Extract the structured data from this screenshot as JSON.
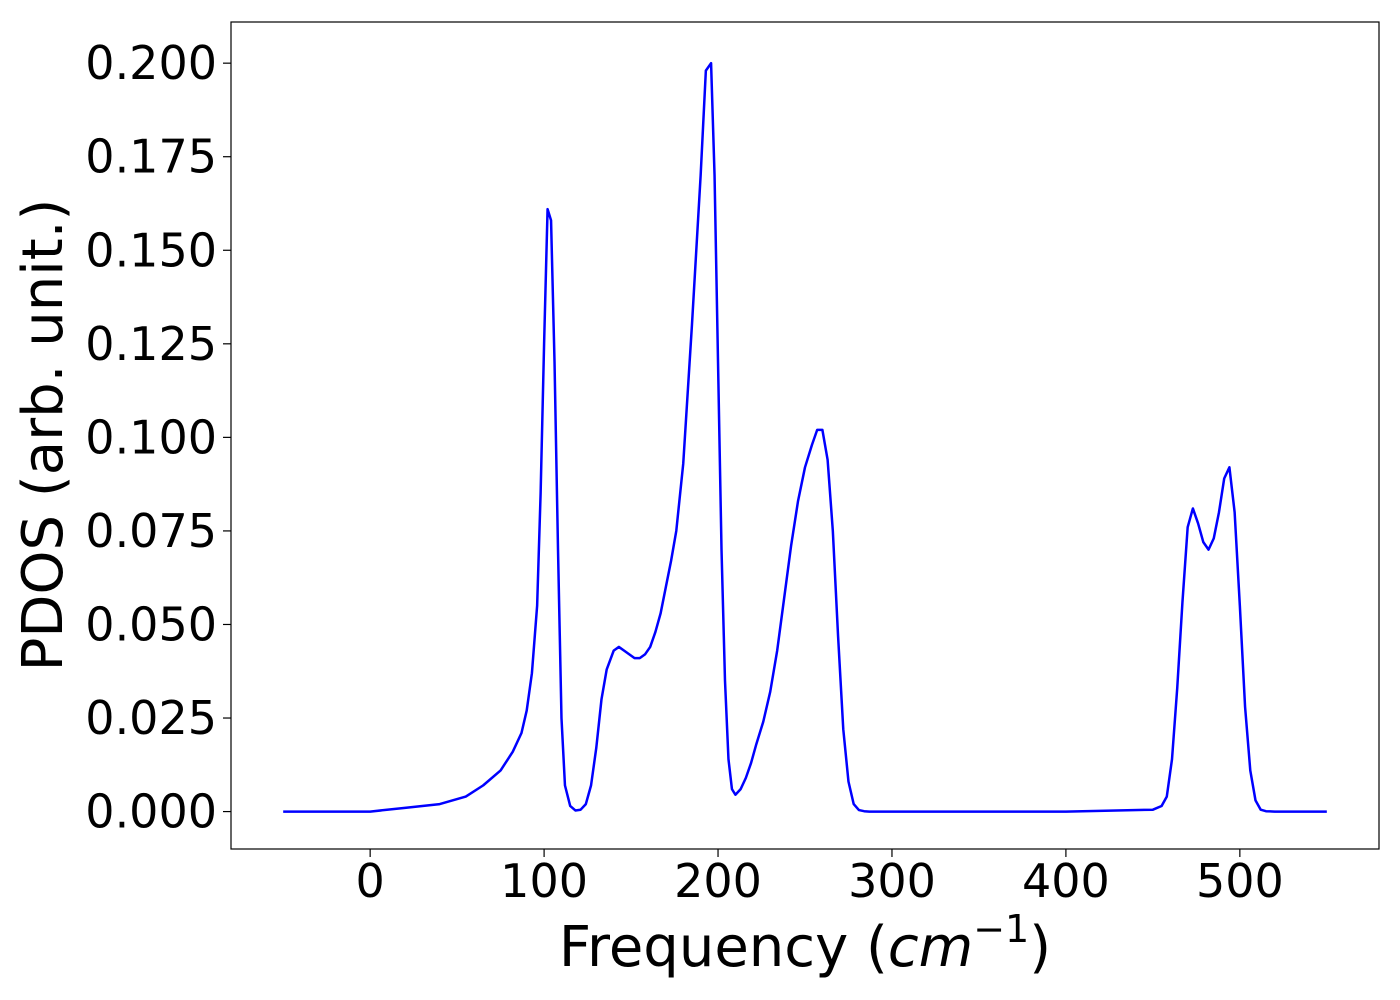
{
  "chart_data": {
    "type": "line",
    "title": "",
    "xlabel": "Frequency",
    "xlabel_unit": "cm",
    "xlabel_unit_exp": "−1",
    "ylabel": "PDOS (arb. unit.)",
    "xlim": [
      -80,
      580
    ],
    "ylim": [
      -0.01,
      0.211
    ],
    "xticks": [
      0,
      100,
      200,
      300,
      400,
      500
    ],
    "xtick_labels": [
      "0",
      "100",
      "200",
      "300",
      "400",
      "500"
    ],
    "yticks": [
      0.0,
      0.025,
      0.05,
      0.075,
      0.1,
      0.125,
      0.15,
      0.175,
      0.2
    ],
    "ytick_labels": [
      "0.000",
      "0.025",
      "0.050",
      "0.075",
      "0.100",
      "0.125",
      "0.150",
      "0.175",
      "0.200"
    ],
    "grid": false,
    "legend": "none",
    "colors": {
      "line": "#0000ff",
      "axes": "#000000"
    },
    "series": [
      {
        "x": [
          -50,
          0,
          20,
          40,
          55,
          65,
          75,
          82,
          87,
          90,
          93,
          96,
          98,
          100,
          102,
          104,
          106,
          108,
          110,
          112,
          115,
          118,
          121,
          124,
          127,
          130,
          133,
          136,
          140,
          143,
          146,
          149,
          152,
          155,
          158,
          161,
          164,
          167,
          170,
          173,
          176,
          180,
          185,
          190,
          193,
          196,
          198,
          200,
          202,
          204,
          206,
          208,
          210,
          213,
          216,
          219,
          222,
          226,
          230,
          234,
          238,
          242,
          246,
          250,
          254,
          257,
          260,
          263,
          266,
          269,
          272,
          275,
          278,
          281,
          284,
          287,
          290,
          300,
          350,
          400,
          450,
          455,
          458,
          461,
          464,
          467,
          470,
          473,
          476,
          479,
          482,
          485,
          488,
          491,
          494,
          497,
          500,
          503,
          506,
          509,
          512,
          515,
          520,
          550
        ],
        "y": [
          0.0,
          0.0,
          0.001,
          0.002,
          0.004,
          0.007,
          0.011,
          0.016,
          0.021,
          0.027,
          0.037,
          0.055,
          0.085,
          0.125,
          0.161,
          0.158,
          0.12,
          0.07,
          0.025,
          0.007,
          0.0015,
          0.0003,
          0.0005,
          0.002,
          0.007,
          0.017,
          0.03,
          0.038,
          0.043,
          0.044,
          0.043,
          0.042,
          0.041,
          0.041,
          0.042,
          0.044,
          0.048,
          0.053,
          0.06,
          0.067,
          0.075,
          0.093,
          0.13,
          0.17,
          0.198,
          0.2,
          0.17,
          0.12,
          0.07,
          0.035,
          0.014,
          0.006,
          0.0045,
          0.006,
          0.009,
          0.013,
          0.018,
          0.024,
          0.032,
          0.043,
          0.057,
          0.071,
          0.083,
          0.092,
          0.098,
          0.102,
          0.102,
          0.094,
          0.075,
          0.047,
          0.022,
          0.008,
          0.002,
          0.0004,
          0.0001,
          0.0,
          0.0,
          0.0,
          0.0,
          0.0,
          0.0005,
          0.0015,
          0.004,
          0.014,
          0.033,
          0.056,
          0.076,
          0.081,
          0.077,
          0.072,
          0.07,
          0.073,
          0.08,
          0.089,
          0.092,
          0.08,
          0.055,
          0.028,
          0.011,
          0.003,
          0.0005,
          0.0001,
          0.0,
          0.0
        ]
      }
    ]
  }
}
